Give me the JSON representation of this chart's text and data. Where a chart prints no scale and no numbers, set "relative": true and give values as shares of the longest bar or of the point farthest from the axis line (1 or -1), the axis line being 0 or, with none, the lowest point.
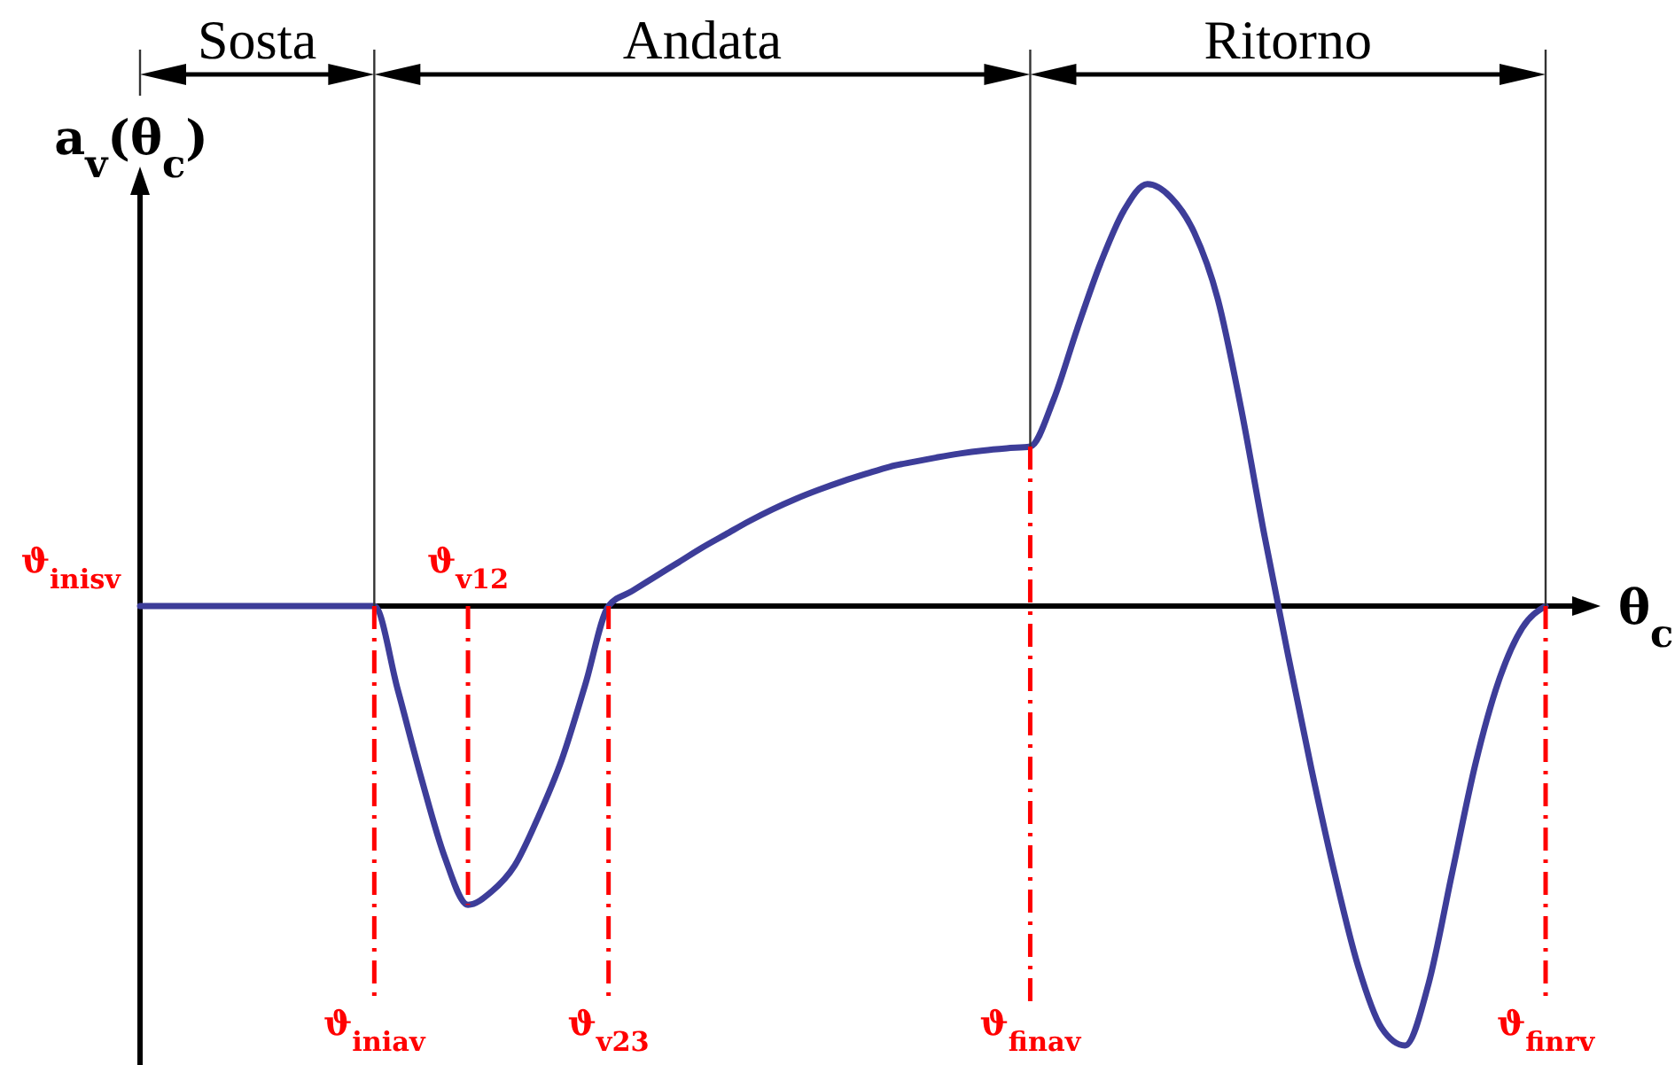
{
  "chart_data": {
    "type": "line",
    "xlabel": "θ$_{c}$",
    "ylabel": "a$_{v}$(θ$_{c}$)",
    "relative": true,
    "categories": [
      null,
      null,
      null,
      null,
      null,
      null,
      null,
      null,
      null,
      null,
      "ϑ$_{iniav}$",
      null,
      null,
      null,
      "ϑ$_{v12}$",
      null,
      null,
      null,
      null,
      null,
      "ϑ$_{v23}$",
      null,
      null,
      null,
      null,
      null,
      null,
      null,
      null,
      null,
      null,
      null,
      null,
      null,
      null,
      null,
      null,
      null,
      "ϑ$_{finav}$",
      null,
      null,
      null,
      null,
      null,
      null,
      null,
      null,
      null,
      null,
      null,
      null,
      null,
      null,
      null,
      null,
      null,
      null,
      null,
      null,
      null,
      "ϑ$_{finrv}$"
    ],
    "series": [
      {
        "color": "#3d3d99",
        "values": [
          0,
          0,
          0,
          0,
          0,
          0,
          0,
          0,
          0,
          0,
          0,
          -0.19,
          -0.39,
          -0.57,
          -0.68,
          -0.65,
          -0.59,
          -0.48,
          -0.35,
          -0.18,
          0,
          0.034,
          0.067,
          0.1,
          0.133,
          0.163,
          0.193,
          0.22,
          0.244,
          0.265,
          0.284,
          0.301,
          0.317,
          0.328,
          0.338,
          0.347,
          0.354,
          0.359,
          0.363,
          0.47,
          0.63,
          0.78,
          0.9,
          0.96,
          0.93,
          0.85,
          0.7,
          0.45,
          0.16,
          -0.11,
          -0.37,
          -0.61,
          -0.82,
          -0.96,
          -1,
          -0.86,
          -0.61,
          -0.36,
          -0.17,
          -0.05,
          0
        ]
      }
    ],
    "ref_lines": [
      {
        "axis": "x",
        "value": "ϑ$_{iniav}$",
        "color": "#333333",
        "line_style": "solid"
      },
      {
        "axis": "x",
        "value": "ϑ$_{finav}$",
        "color": "#333333",
        "line_style": "solid"
      },
      {
        "axis": "x",
        "value": "ϑ$_{finrv}$",
        "color": "#333333",
        "line_style": "solid"
      },
      {
        "axis": "x",
        "value": "ϑ$_{iniav}$",
        "color": "#ff0000",
        "line_style": "dashdot"
      },
      {
        "axis": "x",
        "value": "ϑ$_{v12}$",
        "color": "#ff0000",
        "line_style": "dashdot"
      },
      {
        "axis": "x",
        "value": "ϑ$_{v23}$",
        "color": "#ff0000",
        "line_style": "dashdot"
      },
      {
        "axis": "x",
        "value": "ϑ$_{finav}$",
        "color": "#ff0000",
        "line_style": "dashdot"
      },
      {
        "axis": "x",
        "value": "ϑ$_{finrv}$",
        "color": "#ff0000",
        "line_style": "dashdot"
      }
    ],
    "annotations": [
      "Sosta",
      "Andata",
      "Ritorno",
      "ϑ$_{inisv}$"
    ]
  }
}
